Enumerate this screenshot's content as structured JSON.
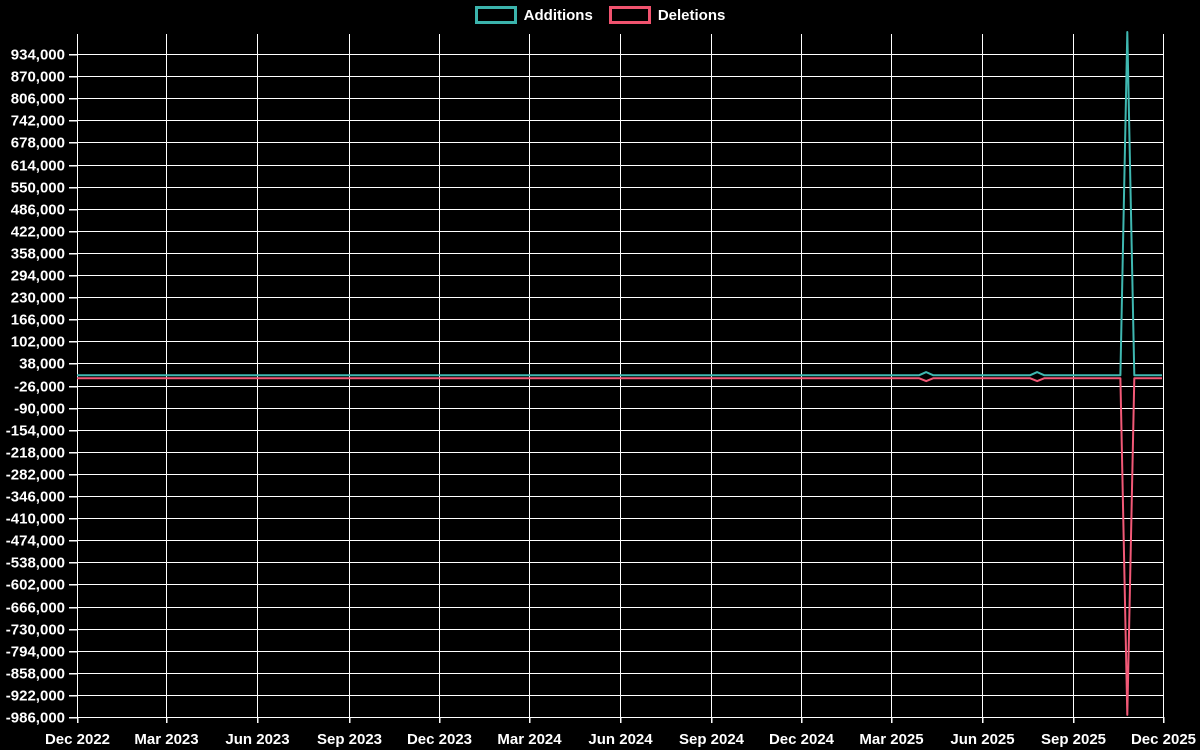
{
  "page": {
    "background": "#000000",
    "grid_color": "#ffffff",
    "text_color": "#ffffff"
  },
  "legend": {
    "items": [
      {
        "label": "Additions",
        "color": "#3bb3ac"
      },
      {
        "label": "Deletions",
        "color": "#f1536f"
      }
    ]
  },
  "chart_data": {
    "type": "line",
    "title": "",
    "xlabel": "",
    "ylabel": "",
    "grid": true,
    "legend_position": "top-center",
    "x_axis": {
      "start": "2022-12-01",
      "end": "2025-12-01",
      "tick_dates": [
        "2022-12-01",
        "2023-03-01",
        "2023-06-01",
        "2023-09-01",
        "2023-12-01",
        "2024-03-01",
        "2024-06-01",
        "2024-09-01",
        "2024-12-01",
        "2025-03-01",
        "2025-06-01",
        "2025-09-01",
        "2025-12-01"
      ],
      "tick_labels": [
        "Dec 2022",
        "Mar 2023",
        "Jun 2023",
        "Sep 2023",
        "Dec 2023",
        "Mar 2024",
        "Jun 2024",
        "Sep 2024",
        "Dec 2024",
        "Mar 2025",
        "Jun 2025",
        "Sep 2025",
        "Dec 2025"
      ]
    },
    "y_axis": {
      "min": -986000,
      "max": 998000,
      "tick_step": 64000,
      "tick_values": [
        934000,
        870000,
        806000,
        742000,
        678000,
        614000,
        550000,
        486000,
        422000,
        358000,
        294000,
        230000,
        166000,
        102000,
        38000,
        -26000,
        -90000,
        -154000,
        -218000,
        -282000,
        -346000,
        -410000,
        -474000,
        -538000,
        -602000,
        -666000,
        -730000,
        -794000,
        -858000,
        -922000,
        -986000
      ],
      "tick_labels": [
        "934,000",
        "870,000",
        "806,000",
        "742,000",
        "678,000",
        "614,000",
        "550,000",
        "486,000",
        "422,000",
        "358,000",
        "294,000",
        "230,000",
        "166,000",
        "102,000",
        "38,000",
        "-26,000",
        "-90,000",
        "-154,000",
        "-218,000",
        "-282,000",
        "-346,000",
        "-410,000",
        "-474,000",
        "-538,000",
        "-602,000",
        "-666,000",
        "-730,000",
        "-794,000",
        "-858,000",
        "-922,000",
        "-986,000"
      ]
    },
    "series": [
      {
        "name": "Additions",
        "color": "#3fb8b1",
        "points": [
          [
            "2022-12-01",
            4000
          ],
          [
            "2025-03-30",
            4000
          ],
          [
            "2025-04-06",
            13000
          ],
          [
            "2025-04-13",
            4000
          ],
          [
            "2025-07-20",
            4000
          ],
          [
            "2025-07-27",
            13000
          ],
          [
            "2025-08-03",
            4000
          ],
          [
            "2025-10-19",
            4000
          ],
          [
            "2025-10-26",
            998000
          ],
          [
            "2025-11-02",
            4000
          ],
          [
            "2025-11-30",
            4000
          ]
        ]
      },
      {
        "name": "Deletions",
        "color": "#f25977",
        "points": [
          [
            "2022-12-01",
            -5000
          ],
          [
            "2025-03-30",
            -5000
          ],
          [
            "2025-04-06",
            -13000
          ],
          [
            "2025-04-13",
            -5000
          ],
          [
            "2025-07-20",
            -5000
          ],
          [
            "2025-07-27",
            -13000
          ],
          [
            "2025-08-03",
            -5000
          ],
          [
            "2025-10-19",
            -5000
          ],
          [
            "2025-10-26",
            -980000
          ],
          [
            "2025-11-02",
            -5000
          ],
          [
            "2025-11-30",
            -5000
          ]
        ]
      }
    ]
  }
}
